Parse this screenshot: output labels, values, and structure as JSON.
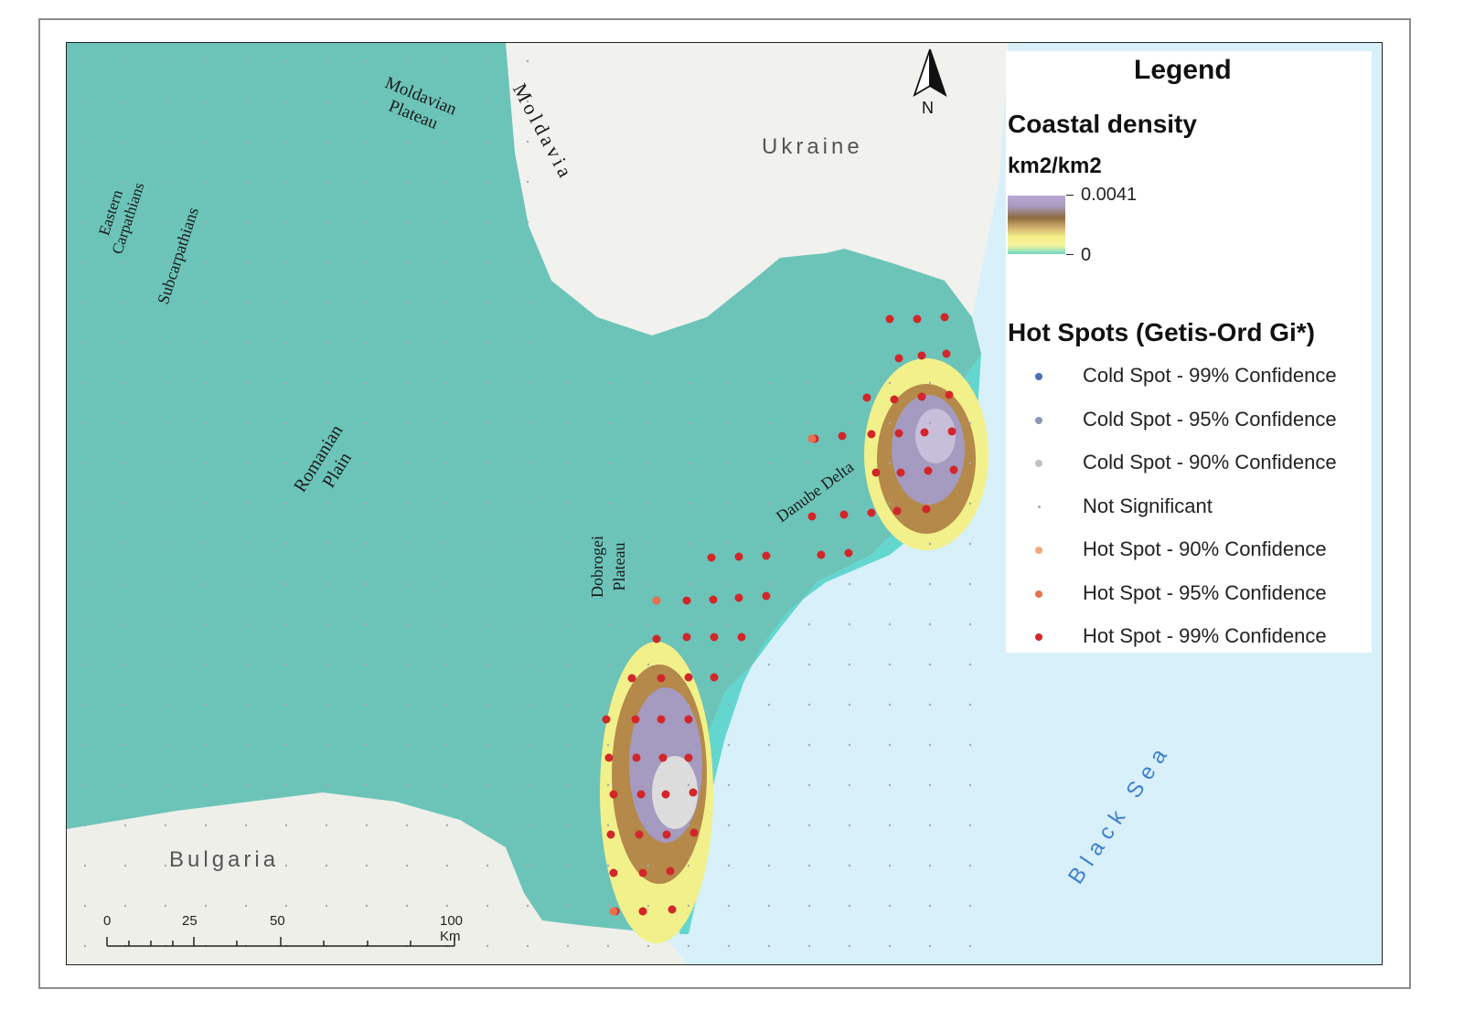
{
  "legend": {
    "title": "Legend",
    "density_title": "Coastal density",
    "density_units": "km2/km2",
    "density_max": "0.0041",
    "density_min": "0",
    "hotspot_title": "Hot Spots (Getis-Ord Gi*)",
    "items": [
      {
        "label": "Cold Spot - 99% Confidence",
        "color": "#4a6fb5",
        "size": "dot"
      },
      {
        "label": "Cold Spot - 95% Confidence",
        "color": "#8c97b8",
        "size": "dot"
      },
      {
        "label": "Cold Spot - 90% Confidence",
        "color": "#bcc6bc",
        "size": "dot"
      },
      {
        "label": "Not Significant",
        "color": "#a9a9a9",
        "size": "small"
      },
      {
        "label": "Hot Spot - 90% Confidence",
        "color": "#f2a97a",
        "size": "dot"
      },
      {
        "label": "Hot Spot - 95% Confidence",
        "color": "#e8714f",
        "size": "dot"
      },
      {
        "label": "Hot Spot - 99% Confidence",
        "color": "#d2262a",
        "size": "dot"
      }
    ]
  },
  "labels": {
    "moldavian_plateau": "Moldavian Plateau",
    "moldavia": "Moldavia",
    "ukraine": "Ukraine",
    "eastern_carpathians": "Eastern Carpathians",
    "subcarpathians": "Subcarpathians",
    "romanian_plain": "Romanian Plain",
    "danube_delta": "Danube Delta",
    "dobrogei_plateau": "Dobrogei Plateau",
    "bulgaria": "Bulgaria",
    "black_sea": "Black Sea"
  },
  "north_arrow": "N",
  "scale": {
    "ticks": [
      "0",
      "25",
      "50",
      "100 Km"
    ]
  },
  "colors": {
    "land_density_low": "#6cc4b8",
    "sea": "#d8f0fa",
    "hotspot_99": "#d2262a"
  }
}
